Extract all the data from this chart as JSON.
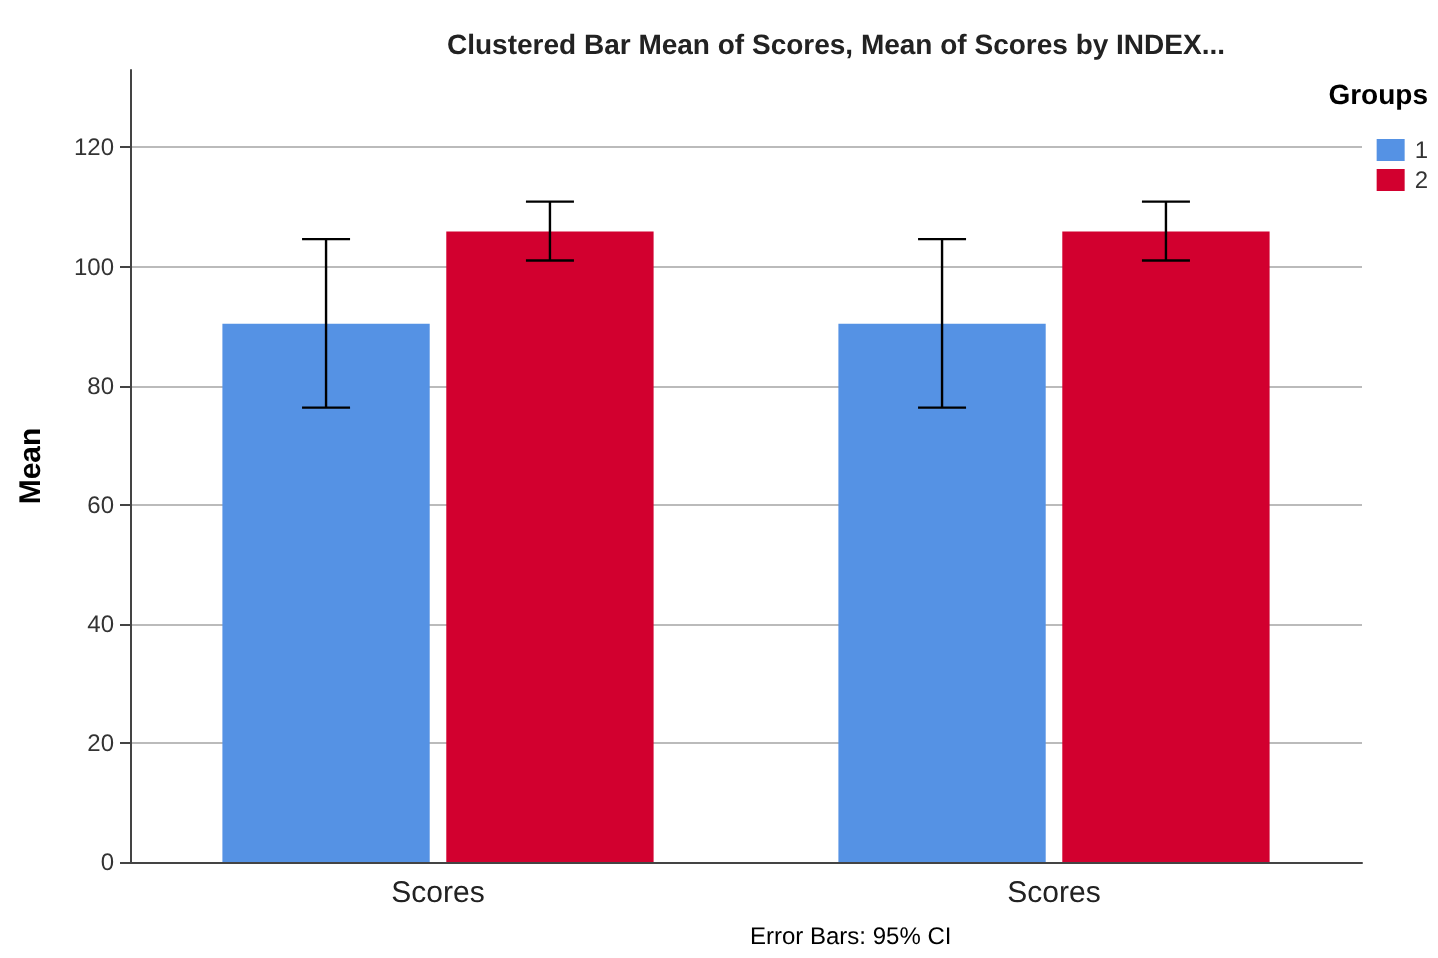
{
  "chart_data": {
    "type": "bar",
    "title": "Clustered Bar Mean of Scores, Mean of Scores by INDEX...",
    "ylabel": "Mean",
    "legend_title": "Groups",
    "annotations": [
      "Error Bars: 95% CI"
    ],
    "categories": [
      "Scores",
      "Scores"
    ],
    "series": [
      {
        "name": "1",
        "color": "#5592e4",
        "values": [
          90.4,
          90.4
        ],
        "errors": [
          [
            76.3,
            104.6
          ],
          [
            76.3,
            104.6
          ]
        ]
      },
      {
        "name": "2",
        "color": "#d2002f",
        "values": [
          105.9,
          105.9
        ],
        "errors": [
          [
            101.0,
            110.9
          ],
          [
            101.0,
            110.9
          ]
        ]
      }
    ],
    "ylim": [
      0,
      133
    ],
    "yticks": [
      0,
      20,
      40,
      60,
      80,
      100,
      120
    ],
    "grid": "y",
    "legend": "top right"
  }
}
